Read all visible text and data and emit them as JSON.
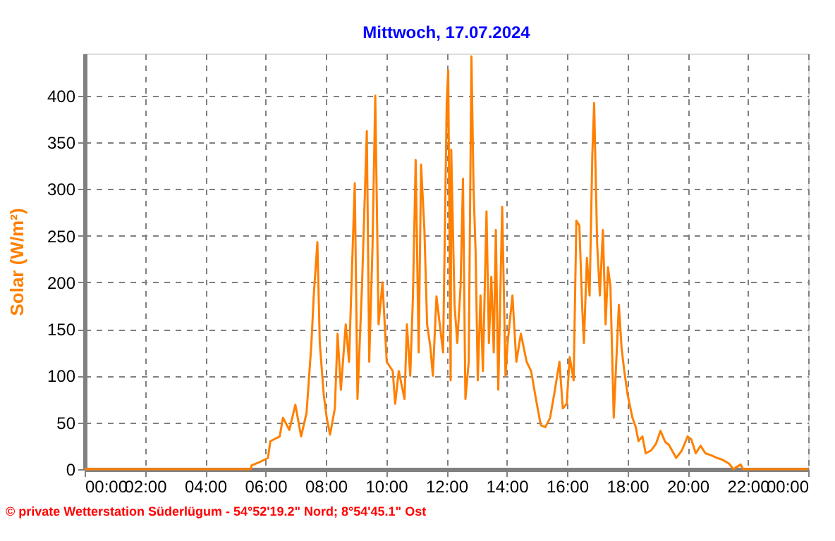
{
  "chart_data": {
    "type": "line",
    "title": "Mittwoch, 17.07.2024",
    "ylabel": "Solar (W/m²)",
    "annotations": [
      "© private Wetterstation Süderlügum - 54°52'19.2\" Nord; 8°54'45.1\" Ost"
    ],
    "x": [
      0,
      5.5,
      5.54,
      5.77,
      6.08,
      6.16,
      6.47,
      6.58,
      6.79,
      6.99,
      7.18,
      7.36,
      7.52,
      7.6,
      7.72,
      7.8,
      7.93,
      8.03,
      8.14,
      8.3,
      8.39,
      8.5,
      8.66,
      8.77,
      8.89,
      8.96,
      9.05,
      9.2,
      9.36,
      9.44,
      9.55,
      9.64,
      9.75,
      9.88,
      10.02,
      10.22,
      10.3,
      10.42,
      10.61,
      10.69,
      10.8,
      10.89,
      10.98,
      11.08,
      11.16,
      11.27,
      11.36,
      11.47,
      11.55,
      11.67,
      11.78,
      11.89,
      12.01,
      12.06,
      12.14,
      12.16,
      12.27,
      12.36,
      12.47,
      12.55,
      12.63,
      12.74,
      12.83,
      12.9,
      12.97,
      13.04,
      13.13,
      13.21,
      13.33,
      13.41,
      13.49,
      13.57,
      13.64,
      13.72,
      13.85,
      13.96,
      14.03,
      14.19,
      14.32,
      14.47,
      14.66,
      14.81,
      14.97,
      15.13,
      15.28,
      15.44,
      15.6,
      15.75,
      15.86,
      15.99,
      16.09,
      16.22,
      16.31,
      16.41,
      16.5,
      16.56,
      16.66,
      16.75,
      16.84,
      16.9,
      17.0,
      17.09,
      17.19,
      17.28,
      17.36,
      17.44,
      17.55,
      17.62,
      17.72,
      17.81,
      17.9,
      18.01,
      18.17,
      18.28,
      18.37,
      18.5,
      18.61,
      18.79,
      18.95,
      19.1,
      19.26,
      19.38,
      19.62,
      19.81,
      20.0,
      20.12,
      20.27,
      20.43,
      20.59,
      20.77,
      20.98,
      21.16,
      21.37,
      21.52,
      21.76,
      21.84,
      24
    ],
    "series": [
      {
        "color": "#ff8000",
        "values": [
          0,
          0,
          4,
          7,
          12,
          30,
          35,
          55,
          42,
          69,
          35,
          60,
          133,
          186,
          243,
          135,
          80,
          55,
          37,
          65,
          145,
          85,
          155,
          115,
          236,
          306,
          75,
          196,
          362,
          115,
          240,
          400,
          155,
          200,
          115,
          105,
          70,
          105,
          75,
          155,
          100,
          185,
          331,
          125,
          326,
          256,
          155,
          130,
          100,
          185,
          155,
          125,
          392,
          427,
          95,
          342,
          176,
          135,
          196,
          311,
          75,
          115,
          442,
          301,
          231,
          95,
          186,
          105,
          276,
          135,
          206,
          125,
          256,
          85,
          281,
          100,
          135,
          186,
          115,
          145,
          115,
          105,
          75,
          47,
          45,
          55,
          85,
          115,
          65,
          70,
          120,
          95,
          266,
          261,
          176,
          135,
          226,
          186,
          337,
          392,
          241,
          186,
          256,
          155,
          216,
          196,
          55,
          105,
          176,
          130,
          105,
          80,
          55,
          45,
          30,
          35,
          17,
          20,
          27,
          41,
          29,
          26,
          12,
          20,
          35,
          32,
          17,
          25,
          17,
          15,
          12,
          10,
          6,
          0,
          5,
          0,
          0
        ]
      }
    ],
    "xlim": [
      0,
      24
    ],
    "xticks": [
      {
        "value": 0,
        "label": "00:00"
      },
      {
        "value": 2,
        "label": "02:00"
      },
      {
        "value": 4,
        "label": "04:00"
      },
      {
        "value": 6,
        "label": "06:00"
      },
      {
        "value": 8,
        "label": "08:00"
      },
      {
        "value": 10,
        "label": "10:00"
      },
      {
        "value": 12,
        "label": "12:00"
      },
      {
        "value": 14,
        "label": "14:00"
      },
      {
        "value": 16,
        "label": "16:00"
      },
      {
        "value": 18,
        "label": "18:00"
      },
      {
        "value": 20,
        "label": "20:00"
      },
      {
        "value": 22,
        "label": "22:00"
      },
      {
        "value": 24,
        "label": "00:00"
      }
    ],
    "ylim": [
      0,
      445
    ],
    "yticks": [
      0,
      50,
      100,
      150,
      200,
      250,
      300,
      350,
      400
    ],
    "grid": true,
    "marker": "none",
    "line_style": "solid"
  }
}
